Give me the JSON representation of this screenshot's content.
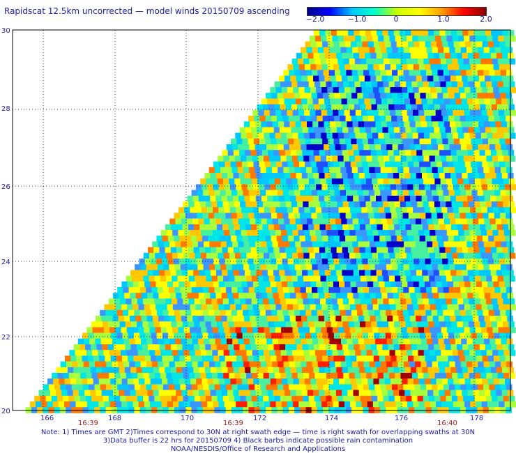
{
  "title": "Rapidscat 12.5km uncorrected — model winds 20150709 ascending",
  "colorbar": {
    "labels": [
      "−2.0",
      "−1.0",
      "0",
      "1.0",
      "2.0"
    ],
    "stops": [
      "#00008c",
      "#0000ff",
      "#00c8ff",
      "#00ffc8",
      "#c8ff00",
      "#ffff00",
      "#ffa000",
      "#ff0000",
      "#8c0000"
    ]
  },
  "axes": {
    "lat_labels": [
      "30",
      "28",
      "26",
      "24",
      "22",
      "20"
    ],
    "lon_labels": [
      "166",
      "168",
      "170",
      "172",
      "174",
      "176",
      "178"
    ],
    "time_labels": [
      "16:39",
      "16:39",
      "16:40"
    ]
  },
  "notes": [
    "Note: 1) Times are GMT 2)Times correspond to 30N at right swath edge — time is right swath for overlapping swaths at 30N",
    "3)Data buffer is 22 hrs for 20150709 4) Black barbs indicate possible rain contamination",
    "NOAA/NESDIS/Office of Research and Applications"
  ],
  "colors": {
    "text": "#2020a0",
    "time_label": "#a02020"
  }
}
